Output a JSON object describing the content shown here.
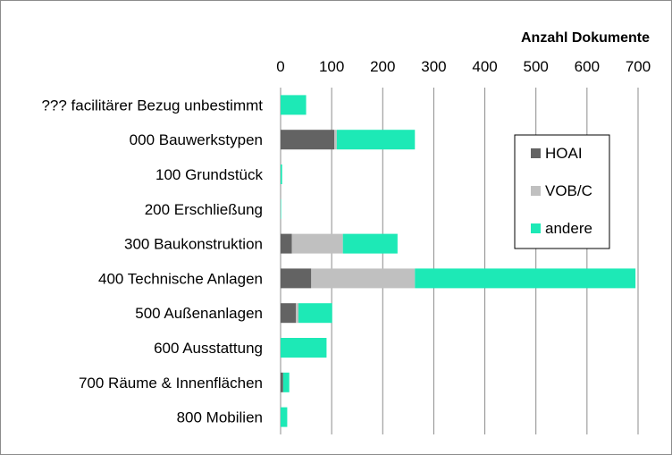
{
  "chart_data": {
    "type": "bar",
    "orientation": "horizontal",
    "stacked": true,
    "title": "",
    "xlabel": "Anzahl Dokumente",
    "ylabel": "",
    "xlim": [
      0,
      700
    ],
    "xticks": [
      0,
      100,
      200,
      300,
      400,
      500,
      600,
      700
    ],
    "grid": true,
    "legend_position": "right",
    "categories": [
      "??? facilitärer Bezug unbestimmt",
      "000 Bauwerkstypen",
      "100 Grundstück",
      "200 Erschließung",
      "300 Baukonstruktion",
      "400 Technische Anlagen",
      "500 Außenanlagen",
      "600 Ausstattung",
      "700 Räume & Innenflächen",
      "800 Mobilien"
    ],
    "series": [
      {
        "name": "HOAI",
        "color": "#636363",
        "values": [
          0,
          105,
          0,
          0,
          22,
          60,
          30,
          0,
          5,
          0
        ]
      },
      {
        "name": "VOB/C",
        "color": "#c0c0c0",
        "values": [
          0,
          5,
          0,
          0,
          100,
          203,
          5,
          0,
          0,
          0
        ]
      },
      {
        "name": "andere",
        "color": "#1de9b6",
        "values": [
          50,
          153,
          3,
          1,
          107,
          432,
          66,
          90,
          12,
          13
        ]
      }
    ]
  }
}
